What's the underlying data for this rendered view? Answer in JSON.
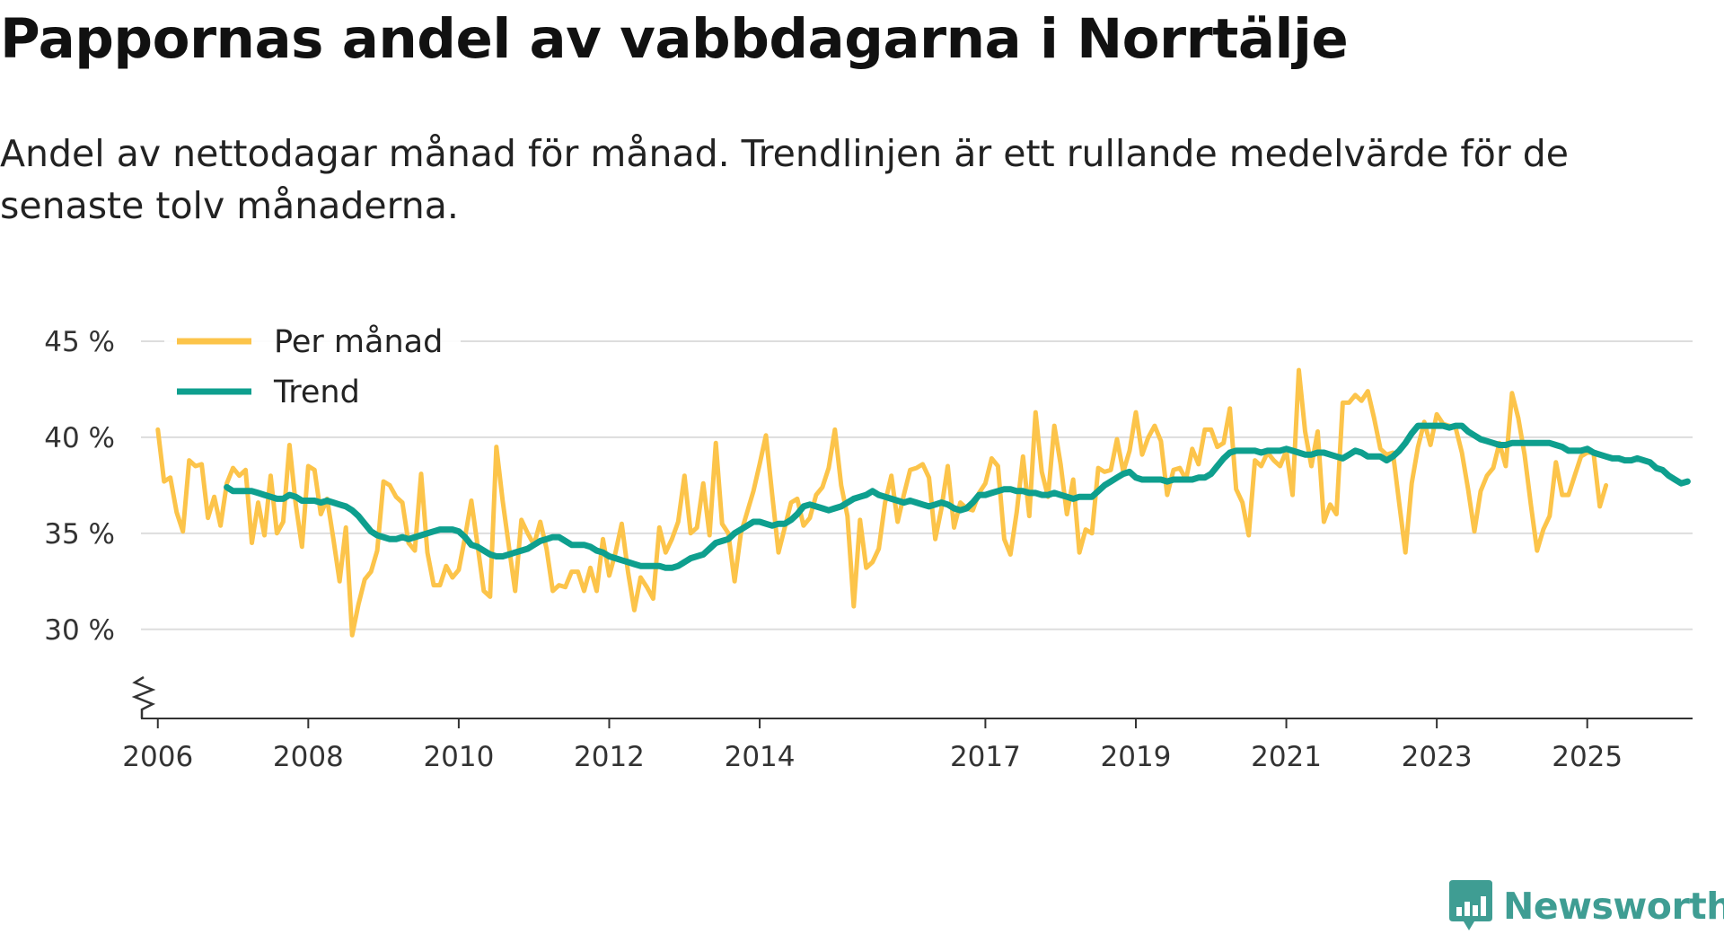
{
  "title": "Pappornas andel av vabbdagarna i Norrtälje",
  "subtitle": "Andel av nettodagar månad för månad. Trendlinjen är ett rullande medelvärde för de senaste tolv månaderna.",
  "brand": {
    "name": "Newsworthy",
    "icon": "newsworthy-logo-icon",
    "color": "#3f9d93"
  },
  "colors": {
    "monthly": "#fcc44a",
    "trend": "#0e9f8e",
    "grid": "#dddddd",
    "axis": "#333333"
  },
  "chart_data": {
    "type": "line",
    "title": "Pappornas andel av vabbdagarna i Norrtälje",
    "xlabel": "",
    "ylabel": "",
    "ylim": [
      25.5,
      45
    ],
    "xlim": [
      2005.8,
      2026.4
    ],
    "y_ticks": [
      30,
      35,
      40,
      45
    ],
    "y_tick_labels": [
      "30 %",
      "35 %",
      "40 %",
      "45 %"
    ],
    "x_ticks": [
      2006,
      2008,
      2010,
      2012,
      2014,
      2017,
      2019,
      2021,
      2023,
      2025
    ],
    "x_tick_labels": [
      "2006",
      "2008",
      "2010",
      "2012",
      "2014",
      "2017",
      "2019",
      "2021",
      "2023",
      "2025"
    ],
    "y_axis_break": true,
    "grid": true,
    "legend_position": "top-left",
    "series": [
      {
        "name": "Per månad",
        "color": "#fcc44a",
        "start": "2006-01",
        "values": [
          40.4,
          37.7,
          37.9,
          36.1,
          35.1,
          38.8,
          38.5,
          38.6,
          35.8,
          36.9,
          35.4,
          37.6,
          38.4,
          38.0,
          38.3,
          34.5,
          36.6,
          34.9,
          38.0,
          35.0,
          35.6,
          39.6,
          36.5,
          34.3,
          38.5,
          38.3,
          36.0,
          36.8,
          34.7,
          32.5,
          35.3,
          29.7,
          31.3,
          32.6,
          33.0,
          34.1,
          37.7,
          37.5,
          36.9,
          36.6,
          34.5,
          34.1,
          38.1,
          34.0,
          32.3,
          32.3,
          33.3,
          32.7,
          33.1,
          34.8,
          36.7,
          34.4,
          32.0,
          31.7,
          39.5,
          36.7,
          34.3,
          32.0,
          35.7,
          35.0,
          34.4,
          35.6,
          34.2,
          32.0,
          32.3,
          32.2,
          33.0,
          33.0,
          32.0,
          33.2,
          32.0,
          34.7,
          32.8,
          34.0,
          35.5,
          33.0,
          31.0,
          32.7,
          32.2,
          31.6,
          35.3,
          34.0,
          34.7,
          35.6,
          38.0,
          35.0,
          35.3,
          37.6,
          34.9,
          39.7,
          35.5,
          35.0,
          32.5,
          35.0,
          36.1,
          37.2,
          38.6,
          40.1,
          37.0,
          34.0,
          35.3,
          36.6,
          36.8,
          35.4,
          35.8,
          37.0,
          37.4,
          38.4,
          40.4,
          37.5,
          35.9,
          31.2,
          35.7,
          33.2,
          33.5,
          34.2,
          36.6,
          38.0,
          35.6,
          37.0,
          38.3,
          38.4,
          38.6,
          37.9,
          34.7,
          36.3,
          38.5,
          35.3,
          36.6,
          36.3,
          36.2,
          37.1,
          37.6,
          38.9,
          38.5,
          34.7,
          33.9,
          36.1,
          39.0,
          35.9,
          41.3,
          38.2,
          36.9,
          40.6,
          38.6,
          36.0,
          37.8,
          34.0,
          35.2,
          35.0,
          38.4,
          38.2,
          38.3,
          39.9,
          38.2,
          39.3,
          41.3,
          39.1,
          40.0,
          40.6,
          39.8,
          37.0,
          38.3,
          38.4,
          37.8,
          39.4,
          38.6,
          40.4,
          40.4,
          39.5,
          39.7,
          41.5,
          37.3,
          36.6,
          34.9,
          38.8,
          38.5,
          39.2,
          38.8,
          38.5,
          39.3,
          37.0,
          43.5,
          40.3,
          38.5,
          40.3,
          35.6,
          36.5,
          36.0,
          41.8,
          41.8,
          42.2,
          41.9,
          42.4,
          41.0,
          39.4,
          39.1,
          39.2,
          36.6,
          34.0,
          37.6,
          39.5,
          40.8,
          39.6,
          41.2,
          40.7,
          40.6,
          40.5,
          39.2,
          37.3,
          35.1,
          37.2,
          38.0,
          38.4,
          39.7,
          38.5,
          42.3,
          41.0,
          39.1,
          36.5,
          34.1,
          35.2,
          35.9,
          38.7,
          37.0,
          37.0,
          38.0,
          39.0,
          39.2,
          39.2,
          36.4,
          37.5
        ]
      },
      {
        "name": "Trend",
        "color": "#0e9f8e",
        "start": "2006-12",
        "values": [
          37.4,
          37.2,
          37.2,
          37.2,
          37.2,
          37.1,
          37.0,
          36.9,
          36.8,
          36.8,
          37.0,
          36.9,
          36.7,
          36.7,
          36.7,
          36.6,
          36.7,
          36.6,
          36.5,
          36.4,
          36.2,
          35.9,
          35.5,
          35.1,
          34.9,
          34.8,
          34.7,
          34.7,
          34.8,
          34.7,
          34.8,
          34.9,
          35.0,
          35.1,
          35.2,
          35.2,
          35.2,
          35.1,
          34.8,
          34.4,
          34.3,
          34.1,
          33.9,
          33.8,
          33.8,
          33.9,
          34.0,
          34.1,
          34.2,
          34.4,
          34.6,
          34.7,
          34.8,
          34.8,
          34.6,
          34.4,
          34.4,
          34.4,
          34.3,
          34.1,
          34.0,
          33.8,
          33.7,
          33.6,
          33.5,
          33.4,
          33.3,
          33.3,
          33.3,
          33.3,
          33.2,
          33.2,
          33.3,
          33.5,
          33.7,
          33.8,
          33.9,
          34.2,
          34.5,
          34.6,
          34.7,
          35.0,
          35.2,
          35.4,
          35.6,
          35.6,
          35.5,
          35.4,
          35.5,
          35.5,
          35.7,
          36.0,
          36.4,
          36.5,
          36.4,
          36.3,
          36.2,
          36.3,
          36.4,
          36.6,
          36.8,
          36.9,
          37.0,
          37.2,
          37.0,
          36.9,
          36.8,
          36.7,
          36.6,
          36.7,
          36.6,
          36.5,
          36.4,
          36.5,
          36.6,
          36.5,
          36.3,
          36.2,
          36.3,
          36.6,
          37.0,
          37.0,
          37.1,
          37.2,
          37.3,
          37.3,
          37.2,
          37.2,
          37.1,
          37.1,
          37.0,
          37.0,
          37.1,
          37.0,
          36.9,
          36.8,
          36.9,
          36.9,
          36.9,
          37.2,
          37.5,
          37.7,
          37.9,
          38.1,
          38.2,
          37.9,
          37.8,
          37.8,
          37.8,
          37.8,
          37.7,
          37.8,
          37.8,
          37.8,
          37.8,
          37.9,
          37.9,
          38.1,
          38.5,
          38.9,
          39.2,
          39.3,
          39.3,
          39.3,
          39.3,
          39.2,
          39.3,
          39.3,
          39.3,
          39.4,
          39.3,
          39.2,
          39.1,
          39.1,
          39.2,
          39.2,
          39.1,
          39.0,
          38.9,
          39.1,
          39.3,
          39.2,
          39.0,
          39.0,
          39.0,
          38.8,
          39.0,
          39.3,
          39.7,
          40.2,
          40.6,
          40.6,
          40.6,
          40.6,
          40.6,
          40.5,
          40.6,
          40.6,
          40.3,
          40.1,
          39.9,
          39.8,
          39.7,
          39.6,
          39.6,
          39.7,
          39.7,
          39.7,
          39.7,
          39.7,
          39.7,
          39.7,
          39.6,
          39.5,
          39.3,
          39.3,
          39.3,
          39.4,
          39.2,
          39.1,
          39.0,
          38.9,
          38.9,
          38.8,
          38.8,
          38.9,
          38.8,
          38.7,
          38.4,
          38.3,
          38.0,
          37.8,
          37.6,
          37.7
        ]
      }
    ]
  }
}
